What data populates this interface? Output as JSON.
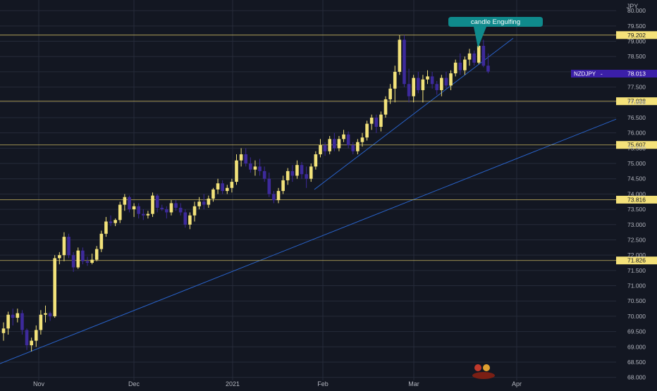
{
  "chart_data": {
    "type": "candlestick",
    "symbol": "NZDJPY",
    "currency_label": "JPY",
    "x_labels": [
      "Nov",
      "Dec",
      "2021",
      "Feb",
      "Mar",
      "Apr"
    ],
    "y_ticks": [
      "80.000",
      "79.500",
      "79.000",
      "78.500",
      "78.000",
      "77.500",
      "77.000",
      "76.500",
      "76.000",
      "75.500",
      "75.000",
      "74.500",
      "74.000",
      "73.500",
      "73.000",
      "72.500",
      "72.000",
      "71.500",
      "71.000",
      "70.500",
      "70.000",
      "69.500",
      "69.000",
      "68.500",
      "68.000"
    ],
    "ylim": [
      67.9,
      80.35
    ],
    "last_price": {
      "label": "NZDJPY",
      "value": "78.013"
    },
    "horizontal_levels": [
      {
        "value": 79.202,
        "label": "79.202"
      },
      {
        "value": 77.038,
        "label": "77.038"
      },
      {
        "value": 75.607,
        "label": "75.607"
      },
      {
        "value": 73.816,
        "label": "73.816"
      },
      {
        "value": 71.826,
        "label": "71.826"
      }
    ],
    "annotation": "candle Engulfing",
    "colors": {
      "background": "#131722",
      "grid": "#262b3a",
      "bull": "#f2e27a",
      "bear": "#3d2a9b",
      "trendline": "#2962c8",
      "level": "#c8b660",
      "level_tag": "#f5e27a",
      "price_tag": "#3b1fa8",
      "annotation_bg": "#0f8a8c",
      "axis_text": "#b2b5be"
    },
    "candles": [
      [
        69.45,
        69.8,
        69.2,
        69.6
      ],
      [
        69.6,
        70.15,
        69.4,
        70.05
      ],
      [
        70.05,
        70.25,
        69.7,
        69.95
      ],
      [
        69.95,
        70.25,
        69.8,
        70.1
      ],
      [
        70.1,
        70.2,
        69.4,
        69.55
      ],
      [
        69.55,
        69.6,
        68.9,
        69.05
      ],
      [
        69.05,
        69.3,
        68.85,
        69.2
      ],
      [
        69.2,
        69.7,
        69.0,
        69.55
      ],
      [
        69.55,
        70.2,
        69.4,
        70.05
      ],
      [
        70.05,
        70.35,
        69.8,
        70.1
      ],
      [
        70.1,
        70.15,
        69.85,
        70.0
      ],
      [
        70.0,
        72.0,
        69.95,
        71.9
      ],
      [
        71.9,
        72.1,
        71.7,
        72.0
      ],
      [
        72.0,
        72.75,
        71.8,
        72.6
      ],
      [
        72.6,
        72.7,
        71.9,
        72.0
      ],
      [
        72.0,
        72.1,
        71.45,
        71.6
      ],
      [
        71.6,
        72.25,
        71.55,
        72.15
      ],
      [
        72.15,
        72.25,
        71.7,
        71.8
      ],
      [
        71.8,
        71.95,
        71.65,
        71.75
      ],
      [
        71.75,
        72.05,
        71.7,
        71.85
      ],
      [
        71.85,
        72.3,
        71.8,
        72.2
      ],
      [
        72.2,
        72.8,
        72.1,
        72.7
      ],
      [
        72.7,
        73.25,
        72.6,
        73.1
      ],
      [
        73.1,
        73.3,
        72.95,
        73.05
      ],
      [
        73.05,
        73.2,
        72.95,
        73.15
      ],
      [
        73.15,
        73.75,
        73.05,
        73.65
      ],
      [
        73.65,
        74.0,
        73.45,
        73.9
      ],
      [
        73.9,
        73.95,
        73.4,
        73.5
      ],
      [
        73.5,
        73.7,
        73.25,
        73.6
      ],
      [
        73.6,
        73.7,
        73.2,
        73.35
      ],
      [
        73.35,
        73.5,
        73.15,
        73.3
      ],
      [
        73.3,
        73.45,
        73.2,
        73.35
      ],
      [
        73.35,
        74.05,
        73.25,
        73.95
      ],
      [
        73.95,
        74.0,
        73.4,
        73.55
      ],
      [
        73.55,
        73.65,
        73.45,
        73.5
      ],
      [
        73.5,
        73.6,
        73.2,
        73.4
      ],
      [
        73.4,
        73.8,
        73.3,
        73.7
      ],
      [
        73.7,
        73.8,
        73.45,
        73.55
      ],
      [
        73.55,
        73.7,
        73.3,
        73.4
      ],
      [
        73.4,
        73.5,
        72.9,
        73.0
      ],
      [
        73.0,
        73.4,
        72.85,
        73.3
      ],
      [
        73.3,
        73.75,
        73.1,
        73.6
      ],
      [
        73.6,
        73.9,
        73.5,
        73.75
      ],
      [
        73.75,
        74.0,
        73.5,
        73.65
      ],
      [
        73.65,
        73.95,
        73.55,
        73.85
      ],
      [
        73.85,
        74.2,
        73.75,
        74.15
      ],
      [
        74.15,
        74.5,
        74.0,
        74.35
      ],
      [
        74.35,
        74.45,
        74.0,
        74.1
      ],
      [
        74.1,
        74.3,
        74.0,
        74.2
      ],
      [
        74.2,
        74.5,
        74.05,
        74.4
      ],
      [
        74.4,
        75.3,
        74.3,
        75.1
      ],
      [
        75.1,
        75.5,
        74.9,
        75.3
      ],
      [
        75.3,
        75.5,
        74.9,
        75.0
      ],
      [
        75.0,
        75.2,
        74.7,
        74.8
      ],
      [
        74.8,
        75.1,
        74.6,
        74.9
      ],
      [
        74.9,
        75.15,
        74.6,
        74.75
      ],
      [
        74.75,
        74.9,
        74.4,
        74.5
      ],
      [
        74.5,
        74.7,
        73.9,
        74.0
      ],
      [
        74.0,
        74.1,
        73.7,
        73.8
      ],
      [
        73.8,
        74.2,
        73.7,
        74.1
      ],
      [
        74.1,
        74.6,
        74.0,
        74.45
      ],
      [
        74.45,
        74.85,
        74.3,
        74.75
      ],
      [
        74.75,
        74.95,
        74.4,
        74.6
      ],
      [
        74.6,
        75.1,
        74.5,
        74.95
      ],
      [
        74.95,
        75.05,
        74.5,
        74.65
      ],
      [
        74.65,
        74.9,
        74.2,
        74.5
      ],
      [
        74.5,
        75.0,
        74.4,
        74.9
      ],
      [
        74.9,
        75.4,
        74.8,
        75.3
      ],
      [
        75.3,
        75.8,
        75.2,
        75.6
      ],
      [
        75.6,
        75.7,
        75.25,
        75.4
      ],
      [
        75.4,
        75.9,
        75.3,
        75.8
      ],
      [
        75.8,
        76.0,
        75.4,
        75.5
      ],
      [
        75.5,
        75.9,
        75.4,
        75.8
      ],
      [
        75.8,
        76.1,
        75.7,
        75.95
      ],
      [
        75.95,
        76.05,
        75.5,
        75.6
      ],
      [
        75.6,
        75.7,
        75.3,
        75.4
      ],
      [
        75.4,
        75.8,
        75.3,
        75.7
      ],
      [
        75.7,
        76.0,
        75.55,
        75.85
      ],
      [
        75.85,
        76.4,
        75.75,
        76.3
      ],
      [
        76.3,
        76.6,
        76.1,
        76.5
      ],
      [
        76.5,
        76.6,
        76.0,
        76.2
      ],
      [
        76.2,
        76.7,
        76.05,
        76.6
      ],
      [
        76.6,
        77.2,
        76.5,
        77.1
      ],
      [
        77.1,
        77.6,
        76.95,
        77.45
      ],
      [
        77.45,
        78.2,
        77.0,
        78.0
      ],
      [
        78.0,
        79.2,
        77.9,
        79.05
      ],
      [
        79.05,
        79.2,
        77.5,
        77.6
      ],
      [
        77.6,
        78.1,
        77.0,
        77.2
      ],
      [
        77.2,
        77.9,
        77.0,
        77.8
      ],
      [
        77.8,
        78.0,
        77.3,
        77.4
      ],
      [
        77.4,
        77.9,
        77.0,
        77.75
      ],
      [
        77.75,
        78.05,
        77.6,
        77.85
      ],
      [
        77.85,
        78.0,
        77.45,
        77.6
      ],
      [
        77.6,
        77.7,
        77.25,
        77.4
      ],
      [
        77.4,
        77.9,
        77.2,
        77.8
      ],
      [
        77.8,
        78.0,
        77.45,
        77.55
      ],
      [
        77.55,
        78.05,
        77.4,
        77.95
      ],
      [
        77.95,
        78.4,
        77.85,
        78.3
      ],
      [
        78.3,
        78.6,
        77.9,
        78.05
      ],
      [
        78.05,
        78.5,
        77.9,
        78.4
      ],
      [
        78.4,
        78.75,
        78.2,
        78.6
      ],
      [
        78.6,
        78.7,
        78.2,
        78.3
      ],
      [
        78.3,
        78.95,
        78.25,
        78.85
      ],
      [
        78.85,
        79.05,
        78.15,
        78.2
      ],
      [
        78.2,
        78.6,
        77.95,
        78.01
      ]
    ]
  }
}
